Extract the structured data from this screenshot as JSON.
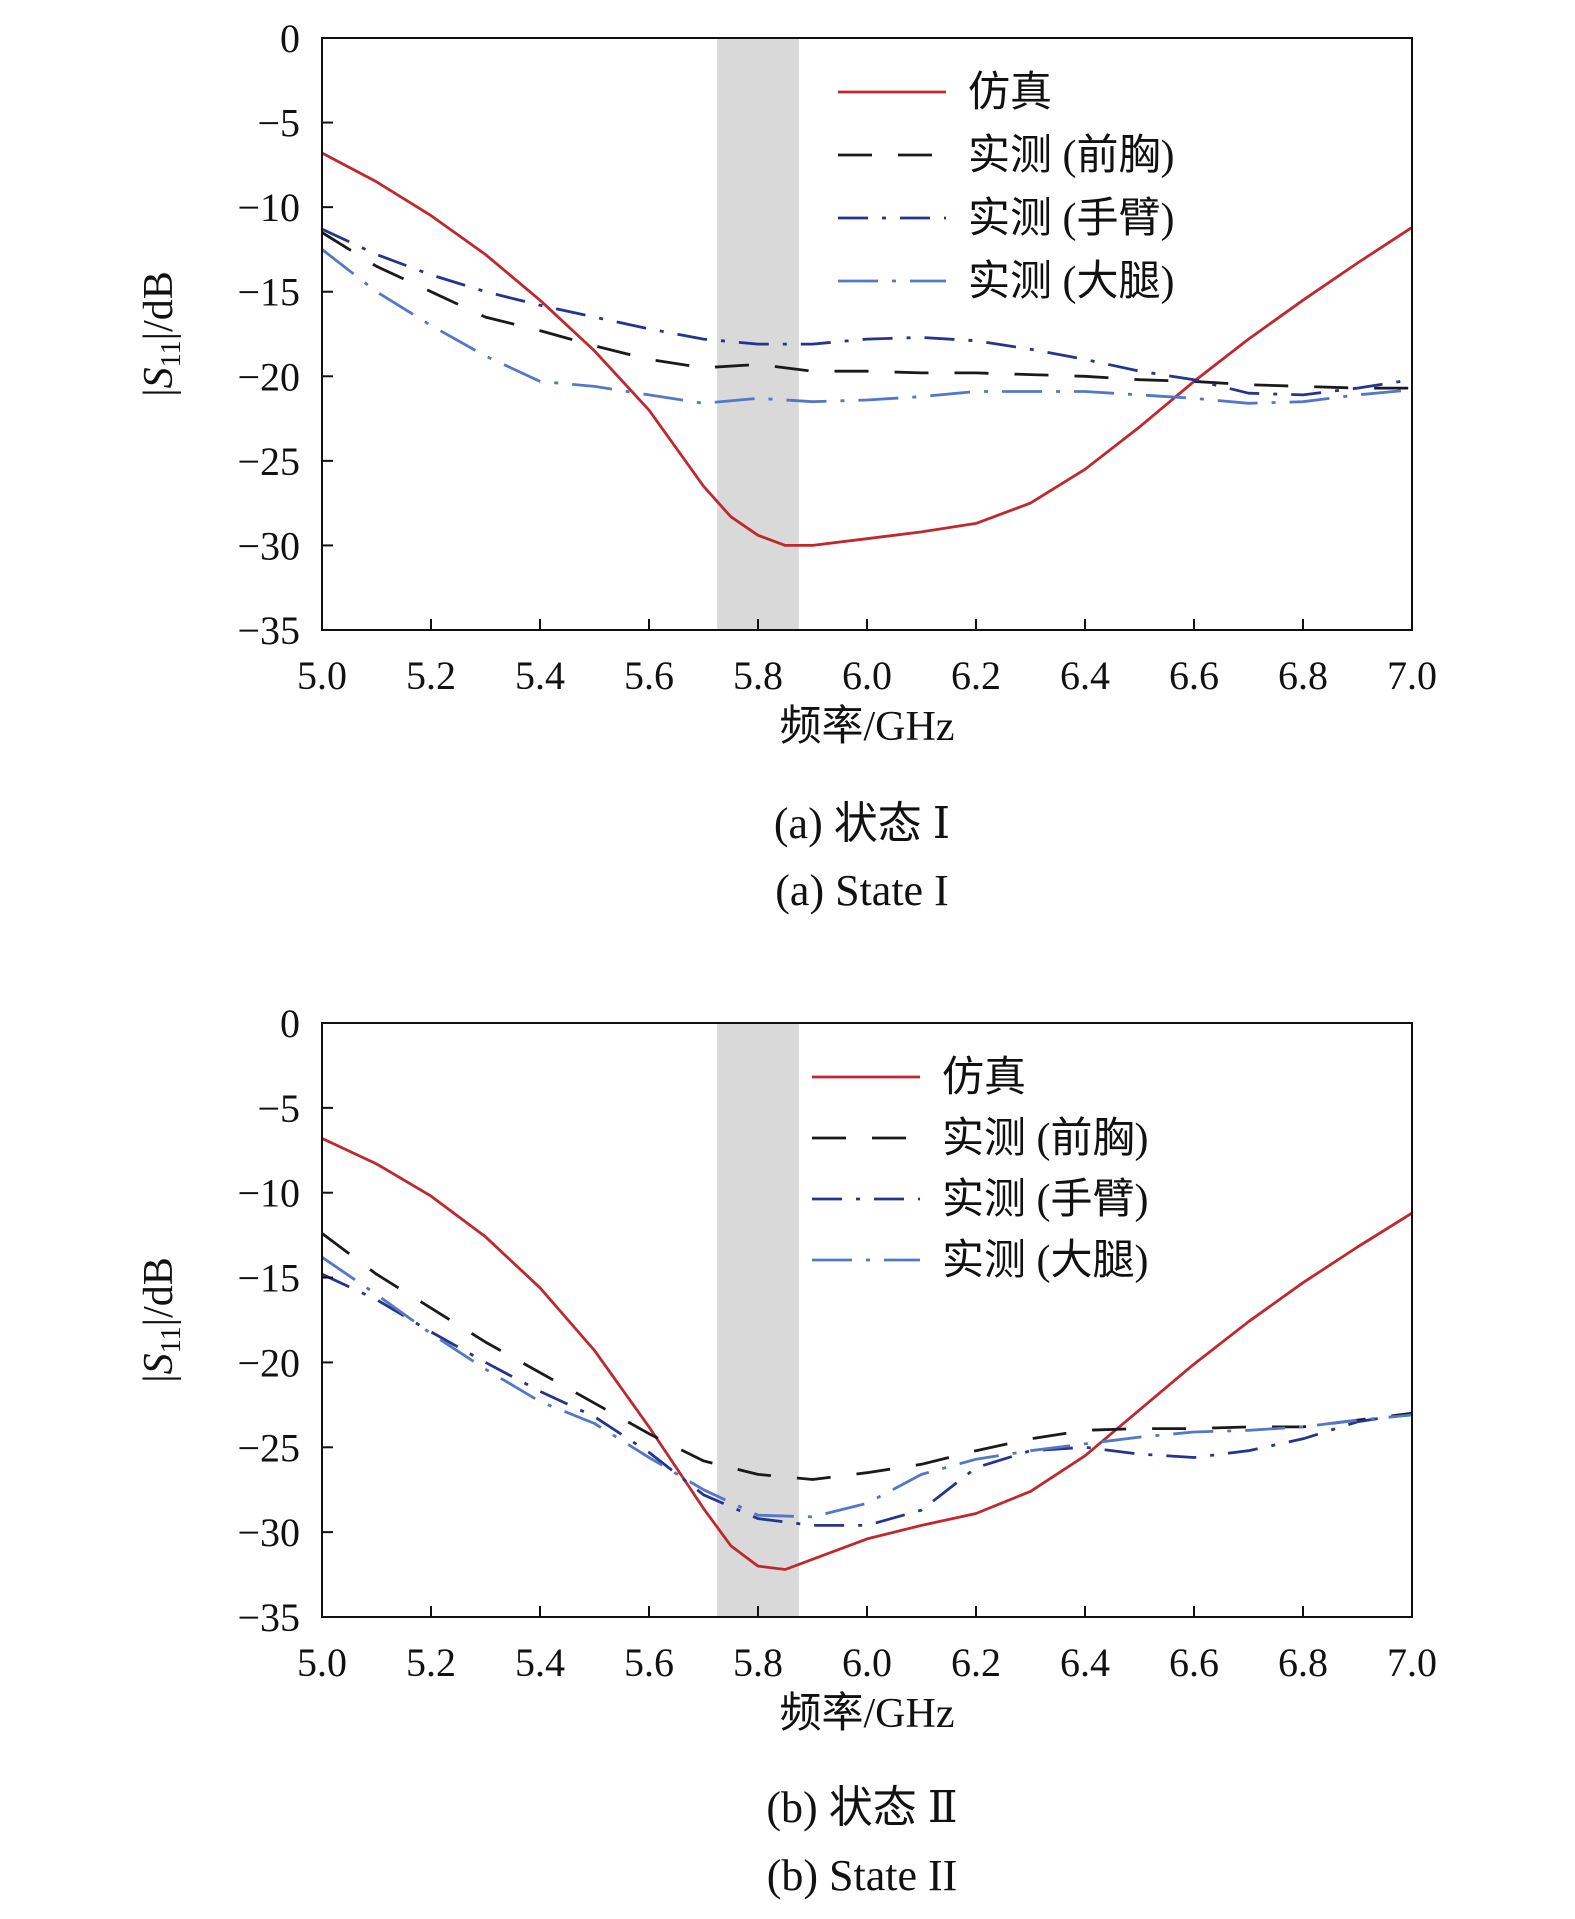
{
  "colors": {
    "sim": "#c0282f",
    "chest": "#1a1a1a",
    "arm": "#25358f",
    "thigh": "#5577c8",
    "band": "#d9d9d9"
  },
  "chart_data": [
    {
      "type": "line",
      "panel": "a",
      "caption_cn": "(a) 状态 Ⅰ",
      "caption_en": "(a) State I",
      "xlabel": "频率/GHz",
      "ylabel_parts": [
        "|",
        "S",
        "11",
        "|/dB"
      ],
      "xlim": [
        5.0,
        7.0
      ],
      "ylim": [
        -35,
        0
      ],
      "xticks": [
        "5.0",
        "5.2",
        "5.4",
        "5.6",
        "5.8",
        "6.0",
        "6.2",
        "6.4",
        "6.6",
        "6.8",
        "7.0"
      ],
      "yticks": [
        "0",
        "−5",
        "−10",
        "−15",
        "−20",
        "−25",
        "−30",
        "−35"
      ],
      "grid": false,
      "legend_position": "top-right",
      "shaded_band": [
        5.725,
        5.875
      ],
      "series": [
        {
          "key": "sim",
          "name": "仿真",
          "style": "solid",
          "x": [
            5.0,
            5.1,
            5.2,
            5.3,
            5.4,
            5.5,
            5.6,
            5.7,
            5.75,
            5.8,
            5.85,
            5.9,
            6.0,
            6.1,
            6.2,
            6.3,
            6.4,
            6.5,
            6.6,
            6.7,
            6.8,
            6.9,
            7.0
          ],
          "y": [
            -6.8,
            -8.5,
            -10.5,
            -12.8,
            -15.5,
            -18.5,
            -22.0,
            -26.5,
            -28.3,
            -29.4,
            -30.0,
            -30.0,
            -29.6,
            -29.2,
            -28.7,
            -27.5,
            -25.5,
            -23.0,
            -20.3,
            -17.8,
            -15.5,
            -13.3,
            -11.2
          ]
        },
        {
          "key": "chest",
          "name": "实测 (前胸)",
          "style": "dash",
          "x": [
            5.0,
            5.1,
            5.2,
            5.3,
            5.4,
            5.5,
            5.6,
            5.7,
            5.8,
            5.9,
            6.0,
            6.1,
            6.2,
            6.3,
            6.4,
            6.5,
            6.6,
            6.7,
            6.8,
            6.9,
            7.0
          ],
          "y": [
            -11.5,
            -13.5,
            -15.0,
            -16.5,
            -17.3,
            -18.2,
            -19.0,
            -19.5,
            -19.3,
            -19.7,
            -19.7,
            -19.8,
            -19.8,
            -19.9,
            -20.0,
            -20.2,
            -20.3,
            -20.5,
            -20.6,
            -20.7,
            -20.7
          ]
        },
        {
          "key": "arm",
          "name": "实测 (手臂)",
          "style": "dashdot",
          "x": [
            5.0,
            5.1,
            5.2,
            5.3,
            5.4,
            5.5,
            5.6,
            5.7,
            5.8,
            5.9,
            6.0,
            6.1,
            6.2,
            6.3,
            6.4,
            6.5,
            6.6,
            6.7,
            6.8,
            6.9,
            7.0
          ],
          "y": [
            -11.3,
            -12.8,
            -14.0,
            -15.0,
            -15.8,
            -16.5,
            -17.2,
            -17.8,
            -18.1,
            -18.1,
            -17.8,
            -17.7,
            -17.9,
            -18.4,
            -19.0,
            -19.7,
            -20.2,
            -21.0,
            -21.1,
            -20.7,
            -20.2
          ]
        },
        {
          "key": "thigh",
          "name": "实测 (大腿)",
          "style": "longdashdot",
          "x": [
            5.0,
            5.1,
            5.2,
            5.3,
            5.4,
            5.5,
            5.6,
            5.7,
            5.8,
            5.9,
            6.0,
            6.1,
            6.2,
            6.3,
            6.4,
            6.5,
            6.6,
            6.7,
            6.8,
            6.9,
            7.0
          ],
          "y": [
            -12.5,
            -15.0,
            -17.0,
            -18.8,
            -20.3,
            -20.6,
            -21.1,
            -21.6,
            -21.3,
            -21.5,
            -21.4,
            -21.2,
            -20.9,
            -20.9,
            -20.9,
            -21.1,
            -21.3,
            -21.6,
            -21.5,
            -21.1,
            -20.8
          ]
        }
      ]
    },
    {
      "type": "line",
      "panel": "b",
      "caption_cn": "(b) 状态 Ⅱ",
      "caption_en": "(b) State II",
      "xlabel": "频率/GHz",
      "ylabel_parts": [
        "|",
        "S",
        "11",
        "|/dB"
      ],
      "xlim": [
        5.0,
        7.0
      ],
      "ylim": [
        -35,
        0
      ],
      "xticks": [
        "5.0",
        "5.2",
        "5.4",
        "5.6",
        "5.8",
        "6.0",
        "6.2",
        "6.4",
        "6.6",
        "6.8",
        "7.0"
      ],
      "yticks": [
        "0",
        "−5",
        "−10",
        "−15",
        "−20",
        "−25",
        "−30",
        "−35"
      ],
      "grid": false,
      "legend_position": "top-right",
      "shaded_band": [
        5.725,
        5.875
      ],
      "series": [
        {
          "key": "sim",
          "name": "仿真",
          "style": "solid",
          "x": [
            5.0,
            5.1,
            5.2,
            5.3,
            5.4,
            5.5,
            5.6,
            5.7,
            5.75,
            5.8,
            5.85,
            5.9,
            6.0,
            6.1,
            6.2,
            6.3,
            6.4,
            6.5,
            6.6,
            6.7,
            6.8,
            6.9,
            7.0
          ],
          "y": [
            -6.8,
            -8.3,
            -10.2,
            -12.6,
            -15.6,
            -19.3,
            -23.8,
            -28.6,
            -30.8,
            -32.0,
            -32.2,
            -31.6,
            -30.4,
            -29.6,
            -28.9,
            -27.6,
            -25.5,
            -22.8,
            -20.1,
            -17.6,
            -15.3,
            -13.2,
            -11.2
          ]
        },
        {
          "key": "chest",
          "name": "实测 (前胸)",
          "style": "dash",
          "x": [
            5.0,
            5.1,
            5.2,
            5.3,
            5.4,
            5.5,
            5.6,
            5.7,
            5.8,
            5.9,
            6.0,
            6.1,
            6.2,
            6.3,
            6.4,
            6.5,
            6.6,
            6.7,
            6.8,
            6.9,
            7.0
          ],
          "y": [
            -12.4,
            -14.8,
            -16.8,
            -18.8,
            -20.6,
            -22.4,
            -24.2,
            -25.8,
            -26.6,
            -26.9,
            -26.5,
            -26.0,
            -25.2,
            -24.5,
            -24.0,
            -23.9,
            -23.9,
            -23.8,
            -23.8,
            -23.4,
            -23.0
          ]
        },
        {
          "key": "arm",
          "name": "实测 (手臂)",
          "style": "dashdot",
          "x": [
            5.0,
            5.1,
            5.2,
            5.3,
            5.4,
            5.5,
            5.6,
            5.7,
            5.8,
            5.9,
            6.0,
            6.1,
            6.2,
            6.3,
            6.4,
            6.5,
            6.6,
            6.7,
            6.8,
            6.9,
            7.0
          ],
          "y": [
            -14.8,
            -16.3,
            -18.2,
            -20.0,
            -21.7,
            -23.2,
            -25.3,
            -27.8,
            -29.2,
            -29.6,
            -29.6,
            -28.7,
            -26.2,
            -25.2,
            -25.0,
            -25.4,
            -25.6,
            -25.2,
            -24.5,
            -23.5,
            -23.0
          ]
        },
        {
          "key": "thigh",
          "name": "实测 (大腿)",
          "style": "longdashdot",
          "x": [
            5.0,
            5.1,
            5.2,
            5.3,
            5.4,
            5.5,
            5.6,
            5.7,
            5.8,
            5.9,
            6.0,
            6.1,
            6.2,
            6.3,
            6.4,
            6.5,
            6.6,
            6.7,
            6.8,
            6.9,
            7.0
          ],
          "y": [
            -13.8,
            -16.0,
            -18.3,
            -20.4,
            -22.3,
            -23.6,
            -25.6,
            -27.5,
            -29.0,
            -29.1,
            -28.3,
            -26.6,
            -25.7,
            -25.2,
            -24.8,
            -24.4,
            -24.1,
            -24.0,
            -23.8,
            -23.4,
            -23.1
          ]
        }
      ]
    }
  ]
}
